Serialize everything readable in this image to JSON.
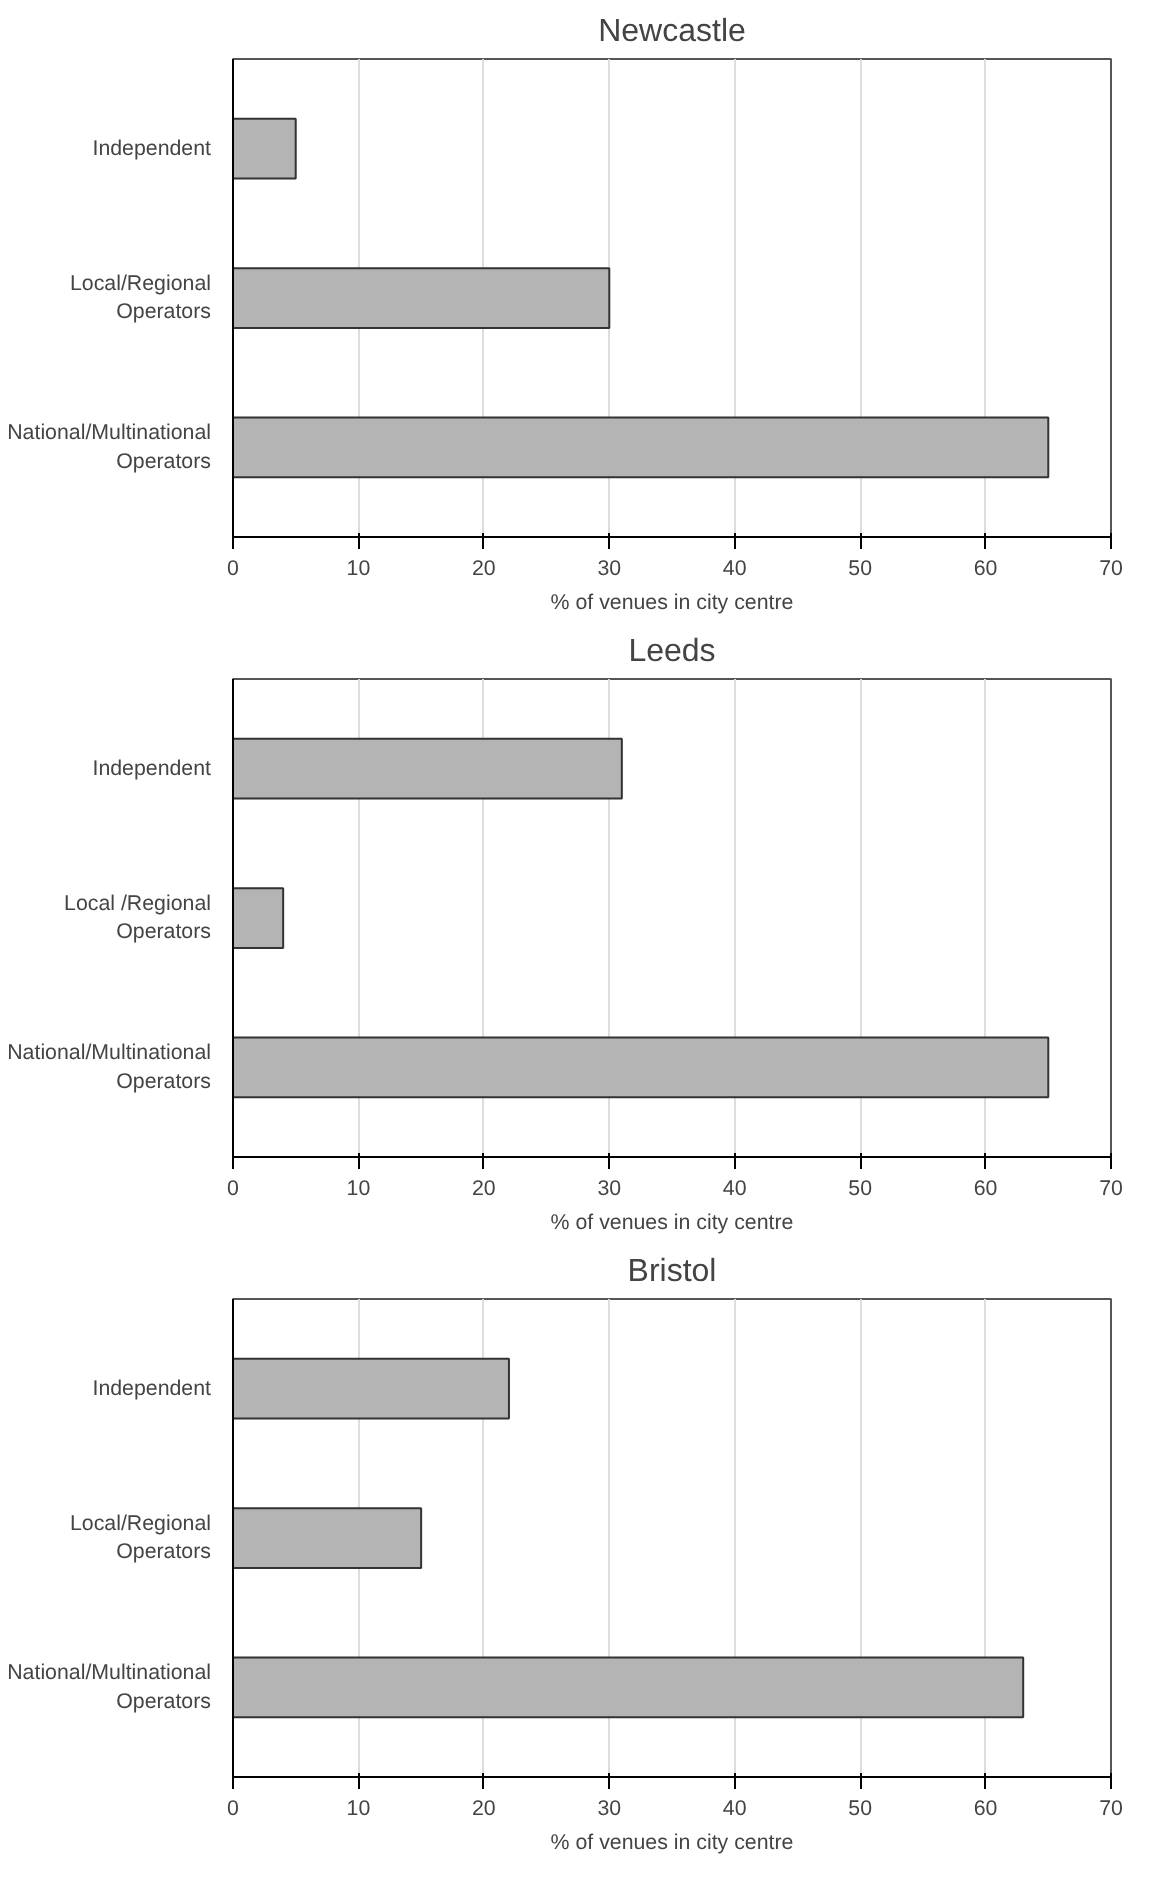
{
  "chart_data": [
    {
      "type": "bar",
      "orientation": "horizontal",
      "title": "Newcastle",
      "xlabel": "% of venues in city centre",
      "categories": [
        "Independent",
        "Local/Regional Operators",
        "National/Multinational Operators"
      ],
      "values": [
        5,
        30,
        65
      ],
      "color": "#b4b4b4",
      "xlim": [
        0,
        70
      ],
      "xticks": [
        0,
        10,
        20,
        30,
        40,
        50,
        60,
        70
      ],
      "grid": "x"
    },
    {
      "type": "bar",
      "orientation": "horizontal",
      "title": "Leeds",
      "xlabel": "% of venues in city centre",
      "categories": [
        "Independent",
        "Local /Regional Operators",
        "National/Multinational Operators"
      ],
      "values": [
        31,
        4,
        65
      ],
      "color": "#b4b4b4",
      "xlim": [
        0,
        70
      ],
      "xticks": [
        0,
        10,
        20,
        30,
        40,
        50,
        60,
        70
      ],
      "grid": "x"
    },
    {
      "type": "bar",
      "orientation": "horizontal",
      "title": "Bristol",
      "xlabel": "% of venues in city centre",
      "categories": [
        "Independent",
        "Local/Regional Operators",
        "National/Multinational Operators"
      ],
      "values": [
        22,
        15,
        63
      ],
      "color": "#b4b4b4",
      "xlim": [
        0,
        70
      ],
      "xticks": [
        0,
        10,
        20,
        30,
        40,
        50,
        60,
        70
      ],
      "grid": "x"
    }
  ]
}
